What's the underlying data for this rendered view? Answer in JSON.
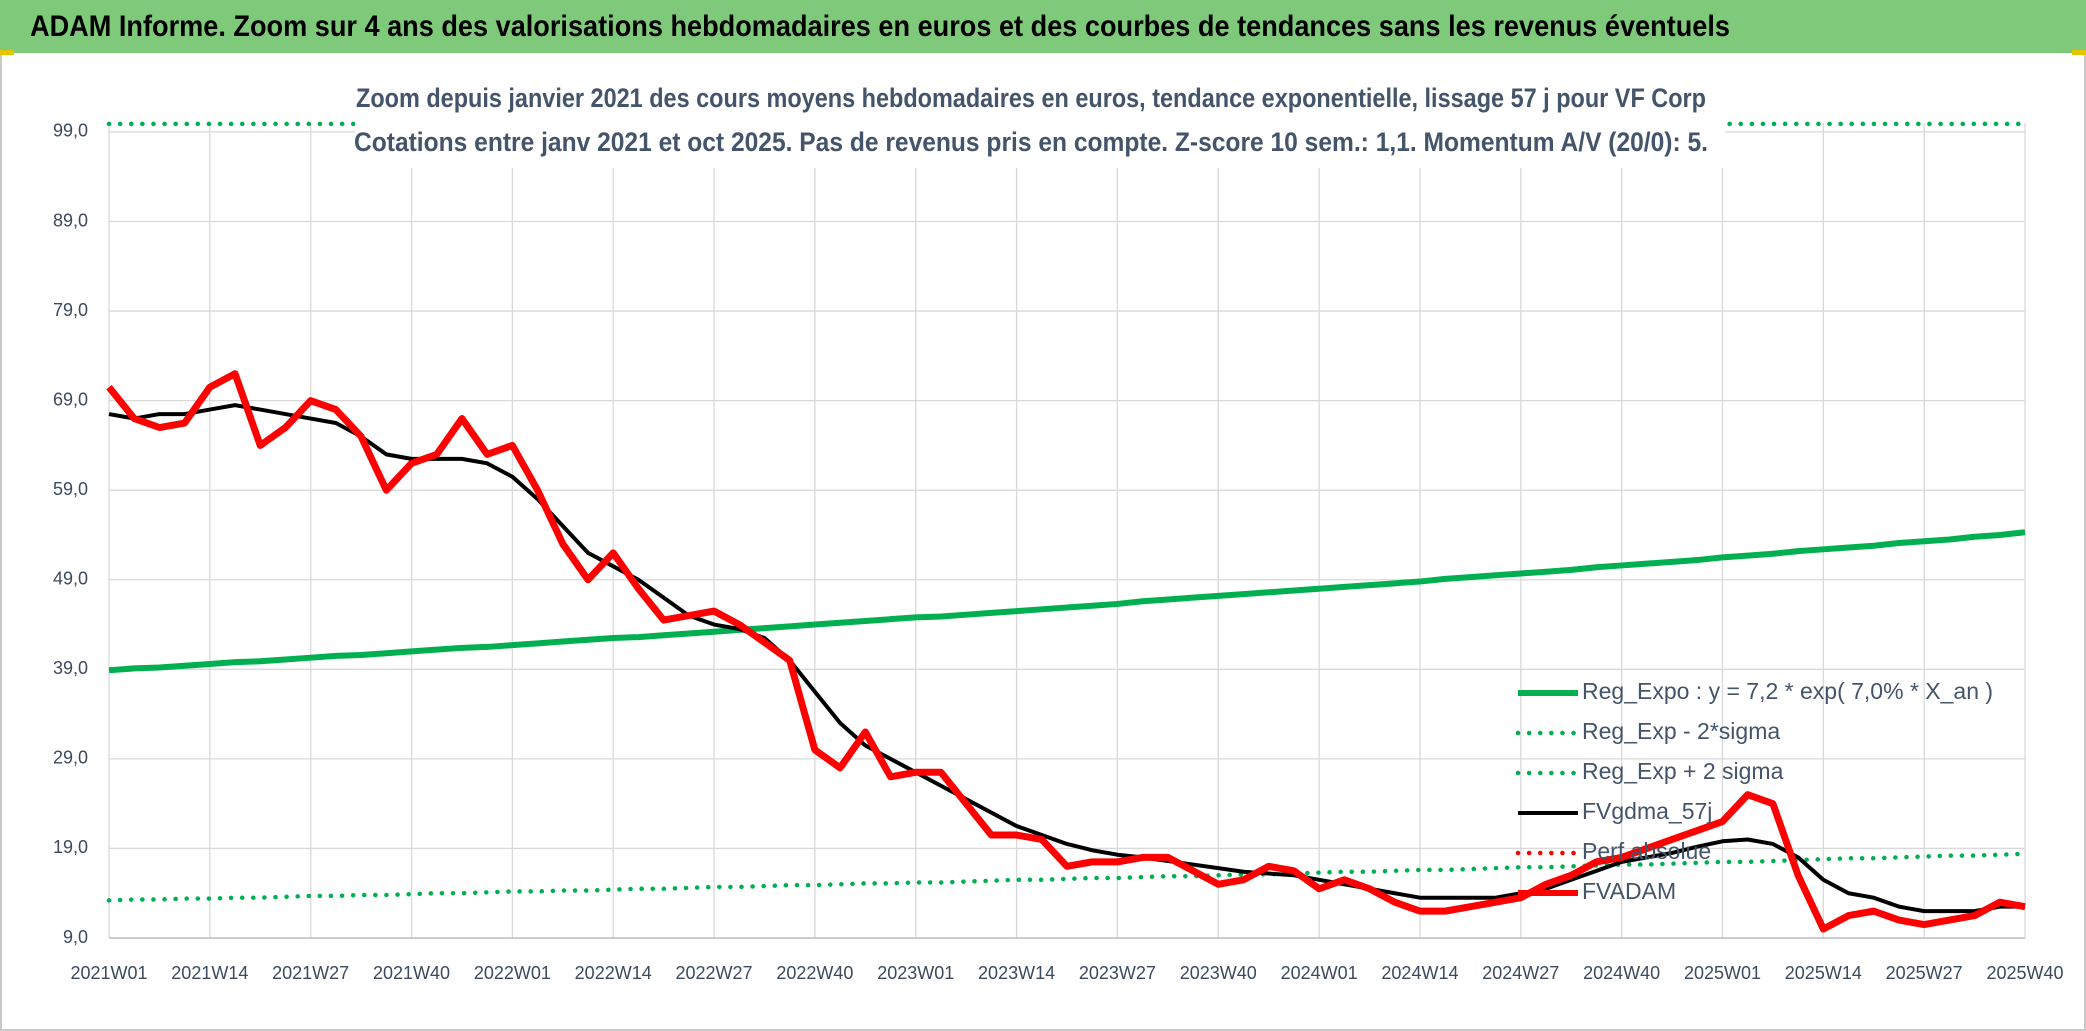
{
  "header": {
    "title": "ADAM Informe. Zoom sur 4 ans des valorisations hebdomadaires en euros et des courbes de tendances sans les revenus éventuels"
  },
  "chart_data": {
    "type": "line",
    "title": "Zoom depuis janvier 2021 des cours moyens hebdomadaires en euros, tendance exponentielle, lissage 57 j pour VF Corp",
    "subtitle": "Cotations entre janv 2021 et oct 2025. Pas de revenus pris en compte. Z-score 10 sem.: 1,1. Momentum A/V (20/0): 5.",
    "categories": [
      "2021W01",
      null,
      null,
      null,
      "2021W14",
      null,
      null,
      null,
      "2021W27",
      null,
      null,
      null,
      "2021W40",
      null,
      null,
      null,
      "2022W01",
      null,
      null,
      null,
      "2022W14",
      null,
      null,
      null,
      "2022W27",
      null,
      null,
      null,
      "2022W40",
      null,
      null,
      null,
      "2023W01",
      null,
      null,
      null,
      "2023W14",
      null,
      null,
      null,
      "2023W27",
      null,
      null,
      null,
      "2023W40",
      null,
      null,
      null,
      "2024W01",
      null,
      null,
      null,
      "2024W14",
      null,
      null,
      null,
      "2024W27",
      null,
      null,
      null,
      "2024W40",
      null,
      null,
      null,
      "2025W01",
      null,
      null,
      null,
      "2025W14",
      null,
      null,
      null,
      "2025W27",
      null,
      null,
      null,
      "2025W40"
    ],
    "ylim": [
      9,
      100
    ],
    "yticks": [
      {
        "value": 9,
        "label": "9,0"
      },
      {
        "value": 19,
        "label": "19,0"
      },
      {
        "value": 29,
        "label": "29,0"
      },
      {
        "value": 39,
        "label": "39,0"
      },
      {
        "value": 49,
        "label": "49,0"
      },
      {
        "value": 59,
        "label": "59,0"
      },
      {
        "value": 69,
        "label": "69,0"
      },
      {
        "value": 79,
        "label": "79,0"
      },
      {
        "value": 89,
        "label": "89,0"
      },
      {
        "value": 99,
        "label": "99,0"
      }
    ],
    "grid": true,
    "legend": "right",
    "series": [
      {
        "name": "Reg_Expo : y = 7,2 * exp( 7,0% *  X_an )",
        "color": "#00b050",
        "line_style": "solid",
        "values": [
          38.9,
          39.1,
          39.2,
          39.4,
          39.6,
          39.8,
          39.9,
          40.1,
          40.3,
          40.5,
          40.6,
          40.8,
          41.0,
          41.2,
          41.4,
          41.5,
          41.7,
          41.9,
          42.1,
          42.3,
          42.5,
          42.6,
          42.8,
          43.0,
          43.2,
          43.4,
          43.6,
          43.8,
          44.0,
          44.2,
          44.4,
          44.6,
          44.8,
          44.9,
          45.1,
          45.3,
          45.5,
          45.7,
          45.9,
          46.1,
          46.3,
          46.6,
          46.8,
          47.0,
          47.2,
          47.4,
          47.6,
          47.8,
          48.0,
          48.2,
          48.4,
          48.6,
          48.8,
          49.1,
          49.3,
          49.5,
          49.7,
          49.9,
          50.1,
          50.4,
          50.6,
          50.8,
          51.0,
          51.2,
          51.5,
          51.7,
          51.9,
          52.2,
          52.4,
          52.6,
          52.8,
          53.1,
          53.3,
          53.5,
          53.8,
          54.0,
          54.3
        ]
      },
      {
        "name": "Reg_Exp - 2*sigma",
        "color": "#00b050",
        "line_style": "dotted",
        "values": [
          13.2,
          13.3,
          13.3,
          13.4,
          13.4,
          13.5,
          13.5,
          13.6,
          13.7,
          13.7,
          13.8,
          13.8,
          13.9,
          14.0,
          14.0,
          14.1,
          14.2,
          14.2,
          14.3,
          14.3,
          14.4,
          14.5,
          14.5,
          14.6,
          14.7,
          14.7,
          14.8,
          14.9,
          14.9,
          15.0,
          15.1,
          15.1,
          15.2,
          15.2,
          15.3,
          15.4,
          15.5,
          15.5,
          15.6,
          15.7,
          15.7,
          15.8,
          15.9,
          15.9,
          16.0,
          16.1,
          16.1,
          16.2,
          16.3,
          16.4,
          16.4,
          16.5,
          16.6,
          16.6,
          16.7,
          16.8,
          16.9,
          16.9,
          17.0,
          17.1,
          17.2,
          17.2,
          17.3,
          17.4,
          17.5,
          17.5,
          17.6,
          17.7,
          17.8,
          17.9,
          17.9,
          18.0,
          18.1,
          18.2,
          18.2,
          18.3,
          18.4
        ]
      },
      {
        "name": "Reg_Exp + 2 sigma",
        "color": "#00b050",
        "line_style": "dotted",
        "values": [
          99.9,
          99.9,
          99.9,
          99.9,
          99.9,
          99.9,
          99.9,
          99.9,
          99.9,
          99.9,
          99.9,
          99.9,
          99.9,
          99.9,
          99.9,
          99.9,
          99.9,
          99.9,
          99.9,
          99.9,
          99.9,
          99.9,
          99.9,
          99.9,
          99.9,
          99.9,
          99.9,
          99.9,
          99.9,
          99.9,
          99.9,
          99.9,
          99.9,
          99.9,
          99.9,
          99.9,
          99.9,
          99.9,
          99.9,
          99.9,
          99.9,
          99.9,
          99.9,
          99.9,
          99.9,
          99.9,
          99.9,
          99.9,
          99.9,
          99.9,
          99.9,
          99.9,
          99.9,
          99.9,
          99.9,
          99.9,
          99.9,
          99.9,
          99.9,
          99.9,
          99.9,
          99.9,
          99.9,
          99.9,
          99.9,
          99.9,
          99.9,
          99.9,
          99.9,
          99.9,
          99.9,
          99.9,
          99.9,
          99.9,
          99.9,
          99.9,
          99.9
        ]
      },
      {
        "name": "FVgdma_57j",
        "color": "#000000",
        "line_style": "solid",
        "values": [
          67.5,
          67,
          67.5,
          67.5,
          68,
          68.5,
          68,
          67.5,
          67,
          66.5,
          65,
          63,
          62.5,
          62.5,
          62.5,
          62,
          60.5,
          58,
          55,
          52,
          50.5,
          49,
          47,
          45,
          44,
          43.5,
          42.5,
          40,
          36.5,
          33,
          30.5,
          29,
          27.5,
          26,
          24.5,
          23,
          21.5,
          20.5,
          19.5,
          18.8,
          18.3,
          18,
          17.6,
          17.2,
          16.8,
          16.4,
          16.2,
          16,
          15.5,
          15,
          14.5,
          14,
          13.5,
          13.5,
          13.5,
          13.5,
          14,
          14.5,
          15.5,
          16.5,
          17.5,
          18,
          18.5,
          19.2,
          19.8,
          20,
          19.5,
          18,
          15.5,
          14,
          13.5,
          12.5,
          12,
          12,
          12,
          12.5,
          12.5
        ]
      },
      {
        "name": "Perf absolue",
        "color": "#ff0000",
        "line_style": "dotted",
        "values": [
          null,
          null,
          null,
          null,
          null,
          null,
          null,
          null,
          null,
          null,
          null,
          null,
          null,
          null,
          null,
          null,
          null,
          null,
          null,
          null,
          null,
          null,
          null,
          null,
          null,
          null,
          null,
          null,
          null,
          null,
          null,
          null,
          null,
          null,
          null,
          null,
          null,
          null,
          null,
          null,
          null,
          null,
          null,
          null,
          null,
          null,
          null,
          null,
          null,
          null,
          null,
          null,
          null,
          null,
          null,
          null,
          null,
          null,
          null,
          null,
          null,
          null,
          null,
          null,
          null,
          null,
          null,
          null,
          null,
          null,
          null,
          null,
          null,
          null,
          null,
          null,
          null
        ]
      },
      {
        "name": "FVADAM",
        "color": "#ff0000",
        "line_style": "solid",
        "values": [
          70.5,
          67,
          66,
          66.5,
          70.5,
          72,
          64,
          66,
          69,
          68,
          65,
          59,
          62,
          63,
          67,
          63,
          64,
          59,
          53,
          49,
          52,
          48,
          44.5,
          45,
          45.5,
          44,
          42,
          40,
          30,
          28,
          32,
          27,
          27.5,
          27.5,
          24,
          20.5,
          20.5,
          20,
          17,
          17.5,
          17.5,
          18,
          18,
          16.5,
          15,
          15.5,
          17,
          16.5,
          14.5,
          15.5,
          14.5,
          13,
          12,
          12,
          12.5,
          13,
          13.5,
          15,
          16,
          17.5,
          18,
          19,
          20,
          21,
          22,
          25,
          24,
          16,
          10,
          11.5,
          12,
          11,
          10.5,
          11,
          11.5,
          13,
          12.5
        ]
      }
    ]
  }
}
